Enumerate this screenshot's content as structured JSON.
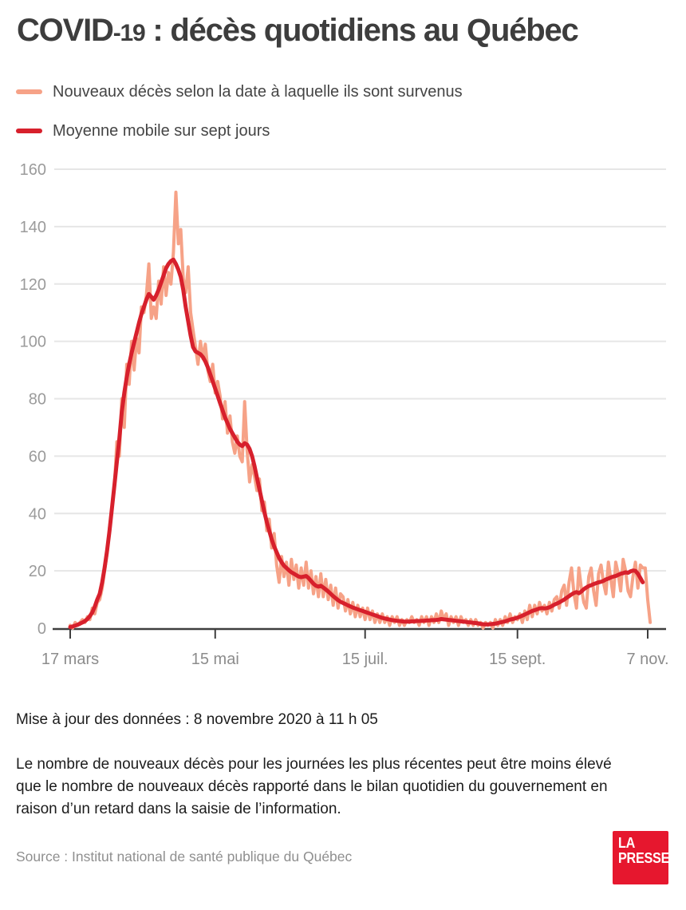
{
  "header": {
    "title_prefix": "COVID",
    "title_number": "-19",
    "title_rest": " : décès quotidiens au Québec"
  },
  "chart_data": {
    "type": "line",
    "title": "COVID-19 : décès quotidiens au Québec",
    "xlabel": "",
    "ylabel": "",
    "ylim": [
      0,
      160
    ],
    "y_ticks": [
      0,
      20,
      40,
      60,
      80,
      100,
      120,
      140,
      160
    ],
    "grid": "horizontal",
    "legend_position": "top-left",
    "x_unit": "day (quotidien, du 17 mars au 8 novembre 2020)",
    "x_ticks": [
      {
        "label": "17 mars",
        "day": 0
      },
      {
        "label": "15 mai",
        "day": 59
      },
      {
        "label": "15 juil.",
        "day": 120
      },
      {
        "label": "15 sept.",
        "day": 182
      },
      {
        "label": "7 nov.",
        "day": 235
      }
    ],
    "series": [
      {
        "name": "Nouveaux décès selon la date à laquelle ils sont survenus",
        "color": "#F6A287",
        "stroke_width": 4,
        "values": [
          1,
          0,
          2,
          1,
          2,
          3,
          2,
          4,
          3,
          7,
          5,
          9,
          10,
          14,
          20,
          26,
          35,
          42,
          50,
          65,
          60,
          80,
          70,
          92,
          85,
          100,
          90,
          101,
          96,
          112,
          110,
          116,
          127,
          108,
          112,
          108,
          121,
          113,
          126,
          116,
          124,
          120,
          131,
          152,
          134,
          139,
          122,
          117,
          126,
          110,
          104,
          98,
          92,
          100,
          94,
          99,
          90,
          86,
          92,
          82,
          86,
          81,
          73,
          79,
          68,
          74,
          65,
          61,
          67,
          60,
          58,
          79,
          62,
          51,
          57,
          53,
          48,
          52,
          41,
          44,
          34,
          38,
          28,
          33,
          22,
          16,
          25,
          18,
          23,
          15,
          24,
          17,
          22,
          14,
          21,
          15,
          23,
          14,
          20,
          12,
          18,
          11,
          19,
          11,
          17,
          10,
          15,
          8,
          14,
          7,
          12,
          11,
          6,
          10,
          5,
          9,
          4,
          8,
          4,
          7,
          3,
          7,
          3,
          6,
          2,
          5,
          2,
          5,
          2,
          4,
          1,
          4,
          2,
          4,
          1,
          3,
          1,
          3,
          2,
          4,
          2,
          3,
          1,
          4,
          2,
          4,
          1,
          4,
          2,
          5,
          2,
          6,
          3,
          5,
          1,
          4,
          2,
          4,
          1,
          4,
          2,
          3,
          1,
          3,
          1,
          3,
          1,
          2,
          0,
          2,
          1,
          2,
          0,
          3,
          1,
          3,
          1,
          4,
          2,
          5,
          2,
          4,
          3,
          5,
          2,
          6,
          3,
          8,
          4,
          8,
          5,
          9,
          6,
          8,
          5,
          9,
          6,
          10,
          11,
          7,
          13,
          15,
          8,
          16,
          21,
          12,
          7,
          21,
          14,
          9,
          7,
          18,
          21,
          13,
          8,
          19,
          22,
          16,
          12,
          23,
          17,
          11,
          23,
          19,
          13,
          24,
          20,
          13,
          11,
          18,
          23,
          14,
          22,
          21,
          21,
          10,
          2
        ]
      },
      {
        "name": "Moyenne mobile sur sept jours",
        "color": "#D7202C",
        "stroke_width": 5,
        "values": [
          0.4,
          0.6,
          0.9,
          1.2,
          1.6,
          2,
          2.5,
          3.2,
          4.2,
          5.5,
          7.5,
          10,
          12,
          16,
          21,
          27,
          34,
          42,
          50,
          58,
          66,
          75.5,
          82,
          87.5,
          92,
          96,
          99.5,
          103,
          106.5,
          109.5,
          112,
          114.5,
          116.5,
          115.5,
          114.5,
          116,
          118,
          120.5,
          123,
          125.5,
          127,
          128,
          128.5,
          127,
          125,
          122.5,
          118,
          112,
          107,
          102,
          98,
          96.5,
          96,
          95.5,
          94.5,
          93,
          91,
          88.5,
          86,
          83.5,
          81,
          78.5,
          76,
          73.5,
          71.5,
          69.5,
          68,
          66.5,
          65,
          64,
          63.5,
          64.5,
          64,
          62.5,
          60,
          56.5,
          52.5,
          48.5,
          44.5,
          40.5,
          37,
          34,
          31,
          28.5,
          26.5,
          24.5,
          23,
          21.8,
          21,
          20.2,
          19.5,
          19,
          18.5,
          18,
          17.8,
          18,
          18.2,
          17.5,
          16.5,
          15.5,
          14.8,
          14.5,
          14.8,
          14.2,
          13.5,
          12.8,
          12,
          11.2,
          10.5,
          9.8,
          9.2,
          8.8,
          8.4,
          8,
          7.6,
          7.2,
          6.9,
          6.6,
          6.3,
          6,
          5.7,
          5.4,
          5.1,
          4.8,
          4.5,
          4.2,
          3.9,
          3.6,
          3.4,
          3.2,
          3,
          2.8,
          2.7,
          2.6,
          2.5,
          2.4,
          2.3,
          2.3,
          2.3,
          2.4,
          2.4,
          2.5,
          2.5,
          2.6,
          2.6,
          2.7,
          2.7,
          2.8,
          2.8,
          2.9,
          3,
          3.2,
          3.1,
          3,
          2.9,
          2.8,
          2.7,
          2.6,
          2.5,
          2.4,
          2.3,
          2.2,
          2.1,
          2,
          1.9,
          1.8,
          1.7,
          1.5,
          1.4,
          1.3,
          1.3,
          1.4,
          1.5,
          1.6,
          1.8,
          2,
          2.2,
          2.4,
          2.7,
          3,
          3.2,
          3.4,
          3.7,
          4,
          4.4,
          4.8,
          5.2,
          5.6,
          6,
          6.3,
          6.6,
          6.9,
          7,
          6.9,
          7,
          7.3,
          7.7,
          8.2,
          8.6,
          9,
          9.5,
          10,
          10.6,
          11.2,
          11.8,
          12.3,
          12.6,
          12.2,
          12.8,
          13.6,
          14.2,
          14.7,
          15,
          15.4,
          15.7,
          16,
          16.2,
          16.5,
          17,
          17.3,
          17.7,
          18,
          18.2,
          18.6,
          19,
          19.2,
          19.5,
          19.3,
          19.8,
          20.1,
          20,
          19,
          17.5,
          16,
          null,
          null,
          null
        ]
      }
    ]
  },
  "style": {
    "grid_color": "#E6E6E6",
    "axis_color": "#3E3E3E",
    "y_label_color": "#9B9B9B",
    "x_label_color": "#8C8C8C"
  },
  "footer": {
    "updated": "Mise à jour des données : 8 novembre 2020 à 11 h 05",
    "note": "Le nombre de nouveaux décès pour les journées les plus récentes peut être moins élevé que le nombre de nouveaux décès rapporté dans le bilan quotidien du gouvernement en raison d’un retard dans la saisie de l’information.",
    "source": "Source : Institut national de santé publique du Québec"
  },
  "logo": {
    "line1": "LA",
    "line2": "PRESSE",
    "color": "#E6172E"
  }
}
